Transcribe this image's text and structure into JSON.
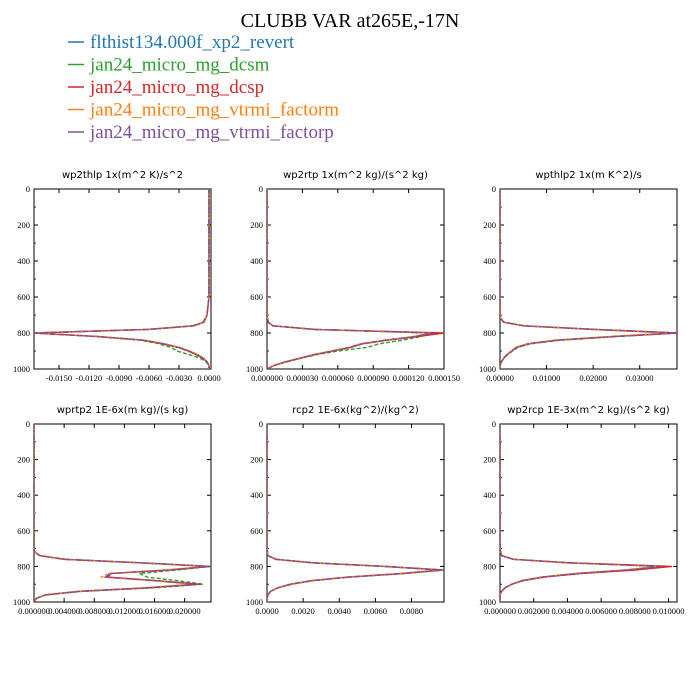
{
  "title": "CLUBB VAR at265E,-17N",
  "legend": [
    {
      "label": "flthist134.000f_xp2_revert",
      "color": "#1f77b4"
    },
    {
      "label": "jan24_micro_mg_dcsm",
      "color": "#2ca02c"
    },
    {
      "label": "jan24_micro_mg_dcsp",
      "color": "#d62728"
    },
    {
      "label": "jan24_micro_mg_vtrmi_factorm",
      "color": "#ff7f0e"
    },
    {
      "label": "jan24_micro_mg_vtrmi_factorp",
      "color": "#7f4fa0"
    }
  ],
  "chart_data": [
    {
      "type": "line",
      "title": "wp2thlp  1x(m^2 K)/s^2",
      "xlim": [
        -0.0175,
        0.0002
      ],
      "ylim": [
        1000,
        0
      ],
      "x_ticks": [
        "-0.0150",
        "-0.0120",
        "-0.0090",
        "-0.0060",
        "-0.0030",
        "0.0000"
      ],
      "y_ticks": [
        "0",
        "200",
        "400",
        "600",
        "800",
        "1000"
      ],
      "y": [
        0,
        100,
        200,
        300,
        400,
        500,
        600,
        700,
        740,
        760,
        780,
        800,
        820,
        840,
        860,
        880,
        900,
        920,
        940,
        960,
        980,
        1000
      ],
      "series": [
        {
          "values": [
            0,
            0,
            0,
            0,
            0,
            0,
            0,
            -0.0002,
            -0.0005,
            -0.0015,
            -0.006,
            -0.0175,
            -0.011,
            -0.0065,
            -0.0045,
            -0.003,
            -0.002,
            -0.0012,
            -0.0006,
            -0.0002,
            0,
            0
          ]
        },
        {
          "values": [
            0,
            0,
            0,
            0,
            0,
            0,
            0,
            -0.0002,
            -0.0005,
            -0.0015,
            -0.006,
            -0.0175,
            -0.011,
            -0.0068,
            -0.005,
            -0.0038,
            -0.0032,
            -0.002,
            -0.0009,
            -0.0003,
            0,
            0
          ]
        },
        {
          "values": [
            0,
            0,
            0,
            0,
            0,
            0,
            0,
            -0.0002,
            -0.0005,
            -0.0016,
            -0.0062,
            -0.0175,
            -0.0112,
            -0.0066,
            -0.0046,
            -0.0031,
            -0.0021,
            -0.0013,
            -0.0006,
            -0.0002,
            0,
            0
          ]
        },
        {
          "values": [
            0,
            0,
            0,
            0,
            0,
            0,
            0,
            -0.0002,
            -0.0005,
            -0.0015,
            -0.0059,
            -0.0174,
            -0.0109,
            -0.0064,
            -0.0044,
            -0.0029,
            -0.0019,
            -0.0011,
            -0.0005,
            -0.0002,
            0,
            0
          ]
        },
        {
          "values": [
            0,
            0,
            0,
            0,
            0,
            0,
            0,
            -0.0002,
            -0.0006,
            -0.0016,
            -0.0061,
            -0.0175,
            -0.0111,
            -0.0066,
            -0.0045,
            -0.003,
            -0.002,
            -0.0012,
            -0.0006,
            -0.0002,
            0,
            0
          ]
        }
      ]
    },
    {
      "type": "line",
      "title": "wp2rtp  1x(m^2 kg)/(s^2 kg)",
      "xlim": [
        0,
        0.00015
      ],
      "ylim": [
        1000,
        0
      ],
      "x_ticks": [
        "0.000000",
        "0.000030",
        "0.000060",
        "0.000090",
        "0.000120",
        "0.000150"
      ],
      "y_ticks": [
        "0",
        "200",
        "400",
        "600",
        "800",
        "1000"
      ],
      "y": [
        0,
        100,
        200,
        300,
        400,
        500,
        600,
        700,
        740,
        760,
        780,
        800,
        820,
        840,
        860,
        880,
        900,
        920,
        940,
        960,
        980,
        1000
      ],
      "series": [
        {
          "values": [
            0,
            0,
            0,
            0,
            0,
            0,
            0,
            0,
            1e-06,
            5e-06,
            4e-05,
            0.00014,
            0.000125,
            0.0001,
            8e-05,
            7e-05,
            5.5e-05,
            4e-05,
            2.8e-05,
            1.6e-05,
            6e-06,
            0
          ]
        },
        {
          "values": [
            0,
            0,
            0,
            0,
            0,
            0,
            0,
            0,
            1e-06,
            5e-06,
            4e-05,
            0.00014,
            0.00013,
            0.000115,
            9.5e-05,
            8.5e-05,
            6e-05,
            4.2e-05,
            2.9e-05,
            1.7e-05,
            6e-06,
            0
          ]
        },
        {
          "values": [
            0,
            0,
            0,
            0,
            0,
            0,
            0,
            0,
            1e-06,
            5e-06,
            4.1e-05,
            0.00015,
            0.000128,
            0.000102,
            8.1e-05,
            7.1e-05,
            5.6e-05,
            4.1e-05,
            2.8e-05,
            1.6e-05,
            6e-06,
            0
          ]
        },
        {
          "values": [
            0,
            0,
            0,
            0,
            0,
            0,
            0,
            0,
            1e-06,
            5e-06,
            3.9e-05,
            0.000138,
            0.000123,
            9.9e-05,
            7.9e-05,
            6.9e-05,
            5.4e-05,
            3.9e-05,
            2.7e-05,
            1.5e-05,
            6e-06,
            0
          ]
        },
        {
          "values": [
            0,
            0,
            0,
            0,
            0,
            0,
            0,
            0,
            1e-06,
            5e-06,
            4e-05,
            0.000142,
            0.000126,
            0.000101,
            8e-05,
            7e-05,
            5.5e-05,
            4e-05,
            2.8e-05,
            1.6e-05,
            6e-06,
            0
          ]
        }
      ]
    },
    {
      "type": "line",
      "title": "wpthlp2  1x(m K^2)/s",
      "xlim": [
        0,
        0.038
      ],
      "ylim": [
        1000,
        0
      ],
      "x_ticks": [
        "0.00000",
        "0.01000",
        "0.02000",
        "0.03000"
      ],
      "y_ticks": [
        "0",
        "200",
        "400",
        "600",
        "800",
        "1000"
      ],
      "y": [
        0,
        100,
        200,
        300,
        400,
        500,
        600,
        700,
        720,
        740,
        760,
        780,
        800,
        820,
        840,
        860,
        880,
        900,
        920,
        940,
        960,
        980,
        1000
      ],
      "series": [
        {
          "values": [
            0,
            0,
            0,
            0,
            0,
            0,
            0,
            0,
            0.0002,
            0.0008,
            0.005,
            0.02,
            0.038,
            0.024,
            0.012,
            0.006,
            0.0035,
            0.0025,
            0.0015,
            0.0008,
            0.0003,
            0,
            0
          ]
        },
        {
          "values": [
            0,
            0,
            0,
            0,
            0,
            0,
            0,
            0,
            0.0002,
            0.0008,
            0.0052,
            0.021,
            0.038,
            0.025,
            0.013,
            0.0065,
            0.0038,
            0.0027,
            0.0016,
            0.0009,
            0.0003,
            0,
            0
          ]
        },
        {
          "values": [
            0,
            0,
            0,
            0,
            0,
            0,
            0,
            0,
            0.0002,
            0.0008,
            0.005,
            0.02,
            0.0378,
            0.024,
            0.012,
            0.006,
            0.0035,
            0.0025,
            0.0015,
            0.0008,
            0.0003,
            0,
            0
          ]
        },
        {
          "values": [
            0,
            0,
            0,
            0,
            0,
            0,
            0,
            0,
            0.0002,
            0.0008,
            0.0049,
            0.0195,
            0.036,
            0.023,
            0.0115,
            0.0058,
            0.0034,
            0.0024,
            0.0014,
            0.0008,
            0.0003,
            0,
            0
          ]
        },
        {
          "values": [
            0,
            0,
            0,
            0,
            0,
            0,
            0,
            0,
            0.0002,
            0.0008,
            0.0051,
            0.0205,
            0.038,
            0.0245,
            0.0123,
            0.0061,
            0.0036,
            0.0025,
            0.0015,
            0.0008,
            0.0003,
            0,
            0
          ]
        }
      ]
    },
    {
      "type": "line",
      "title": "wprtp2  1E-6x(m kg)/(s kg)",
      "xlim": [
        0,
        0.0235
      ],
      "ylim": [
        1000,
        0
      ],
      "x_ticks": [
        "0.000000",
        "0.004000",
        "0.008000",
        "0.012000",
        "0.016000",
        "0.020000"
      ],
      "y_ticks": [
        "0",
        "200",
        "400",
        "600",
        "800",
        "1000"
      ],
      "y": [
        0,
        100,
        200,
        300,
        400,
        500,
        600,
        700,
        720,
        740,
        760,
        780,
        800,
        820,
        840,
        860,
        880,
        900,
        920,
        940,
        960,
        980,
        1000
      ],
      "series": [
        {
          "values": [
            0,
            0,
            0,
            0,
            0,
            0,
            0,
            0,
            0.0001,
            0.0008,
            0.004,
            0.014,
            0.0235,
            0.018,
            0.01,
            0.0095,
            0.016,
            0.0215,
            0.015,
            0.006,
            0.0015,
            0.0003,
            0
          ]
        },
        {
          "values": [
            0,
            0,
            0,
            0,
            0,
            0,
            0,
            0,
            0.0001,
            0.0008,
            0.0042,
            0.0145,
            0.0235,
            0.019,
            0.014,
            0.015,
            0.019,
            0.0225,
            0.016,
            0.0065,
            0.0016,
            0.0003,
            0
          ]
        },
        {
          "values": [
            0,
            0,
            0,
            0,
            0,
            0,
            0,
            0,
            0.0001,
            0.0008,
            0.004,
            0.014,
            0.0232,
            0.0178,
            0.0102,
            0.0098,
            0.0162,
            0.022,
            0.0152,
            0.0061,
            0.0015,
            0.0003,
            0
          ]
        },
        {
          "values": [
            0,
            0,
            0,
            0,
            0,
            0,
            0,
            0,
            0.0001,
            0.0008,
            0.0039,
            0.0138,
            0.0228,
            0.0172,
            0.0098,
            0.009,
            0.0155,
            0.0208,
            0.0145,
            0.0058,
            0.0014,
            0.0003,
            0
          ]
        },
        {
          "values": [
            0,
            0,
            0,
            0,
            0,
            0,
            0,
            0,
            0.0001,
            0.0008,
            0.0041,
            0.0142,
            0.0234,
            0.0181,
            0.0101,
            0.0096,
            0.0161,
            0.0217,
            0.0151,
            0.006,
            0.0015,
            0.0003,
            0
          ]
        }
      ]
    },
    {
      "type": "line",
      "title": "rcp2  1E-6x(kg^2)/(kg^2)",
      "xlim": [
        0,
        0.0098
      ],
      "ylim": [
        1000,
        0
      ],
      "x_ticks": [
        "0.0000",
        "0.0020",
        "0.0040",
        "0.0060",
        "0.0080"
      ],
      "y_ticks": [
        "0",
        "200",
        "400",
        "600",
        "800",
        "1000"
      ],
      "y": [
        0,
        100,
        200,
        300,
        400,
        500,
        600,
        700,
        740,
        760,
        780,
        800,
        820,
        840,
        860,
        880,
        900,
        920,
        940,
        960,
        980,
        1000
      ],
      "series": [
        {
          "values": [
            0,
            0,
            0,
            0,
            0,
            0,
            0,
            0,
            5e-05,
            0.0005,
            0.0025,
            0.0065,
            0.0097,
            0.0075,
            0.0045,
            0.0025,
            0.0013,
            0.0006,
            0.0002,
            5e-05,
            0,
            0
          ]
        },
        {
          "values": [
            0,
            0,
            0,
            0,
            0,
            0,
            0,
            0,
            5e-05,
            0.0005,
            0.0026,
            0.0066,
            0.0098,
            0.0076,
            0.0046,
            0.0026,
            0.0014,
            0.0006,
            0.0002,
            5e-05,
            0,
            0
          ]
        },
        {
          "values": [
            0,
            0,
            0,
            0,
            0,
            0,
            0,
            0,
            5e-05,
            0.0005,
            0.0025,
            0.0065,
            0.0097,
            0.0075,
            0.0045,
            0.0025,
            0.0013,
            0.0006,
            0.0002,
            5e-05,
            0,
            0
          ]
        },
        {
          "values": [
            0,
            0,
            0,
            0,
            0,
            0,
            0,
            0,
            5e-05,
            0.0005,
            0.0024,
            0.0064,
            0.0096,
            0.0074,
            0.0044,
            0.0024,
            0.0013,
            0.0006,
            0.0002,
            5e-05,
            0,
            0
          ]
        },
        {
          "values": [
            0,
            0,
            0,
            0,
            0,
            0,
            0,
            0,
            5e-05,
            0.0005,
            0.0025,
            0.0065,
            0.0097,
            0.0075,
            0.0045,
            0.0025,
            0.0013,
            0.0006,
            0.0002,
            5e-05,
            0,
            0
          ]
        }
      ]
    },
    {
      "type": "line",
      "title": "wp2rcp  1E-3x(m^2 kg)/(s^2 kg)",
      "xlim": [
        0,
        0.0105
      ],
      "ylim": [
        1000,
        0
      ],
      "x_ticks": [
        "0.000000",
        "0.002000",
        "0.004000",
        "0.006000",
        "0.008000",
        "0.010000"
      ],
      "y_ticks": [
        "0",
        "200",
        "400",
        "600",
        "800",
        "1000"
      ],
      "y": [
        0,
        100,
        200,
        300,
        400,
        500,
        600,
        700,
        740,
        760,
        780,
        800,
        820,
        840,
        860,
        880,
        900,
        920,
        940,
        960,
        980,
        1000
      ],
      "series": [
        {
          "values": [
            0,
            0,
            0,
            0,
            0,
            0,
            0,
            0,
            0.0001,
            0.0008,
            0.004,
            0.0095,
            0.0075,
            0.0045,
            0.0025,
            0.0013,
            0.0007,
            0.0003,
            0.0001,
            0,
            0,
            0
          ]
        },
        {
          "values": [
            0,
            0,
            0,
            0,
            0,
            0,
            0,
            0,
            0.0001,
            0.0008,
            0.0041,
            0.0098,
            0.0078,
            0.0047,
            0.0026,
            0.0014,
            0.0007,
            0.0003,
            0.0001,
            0,
            0,
            0
          ]
        },
        {
          "values": [
            0,
            0,
            0,
            0,
            0,
            0,
            0,
            0,
            0.0001,
            0.0008,
            0.0042,
            0.0102,
            0.008,
            0.0048,
            0.0026,
            0.0014,
            0.0007,
            0.0003,
            0.0001,
            0,
            0,
            0
          ]
        },
        {
          "values": [
            0,
            0,
            0,
            0,
            0,
            0,
            0,
            0,
            0.0001,
            0.0008,
            0.0039,
            0.0093,
            0.0073,
            0.0044,
            0.0024,
            0.0013,
            0.0007,
            0.0003,
            0.0001,
            0,
            0,
            0
          ]
        },
        {
          "values": [
            0,
            0,
            0,
            0,
            0,
            0,
            0,
            0,
            0.0001,
            0.0008,
            0.004,
            0.0096,
            0.0076,
            0.0046,
            0.0025,
            0.0013,
            0.0007,
            0.0003,
            0.0001,
            0,
            0,
            0
          ]
        }
      ]
    }
  ]
}
